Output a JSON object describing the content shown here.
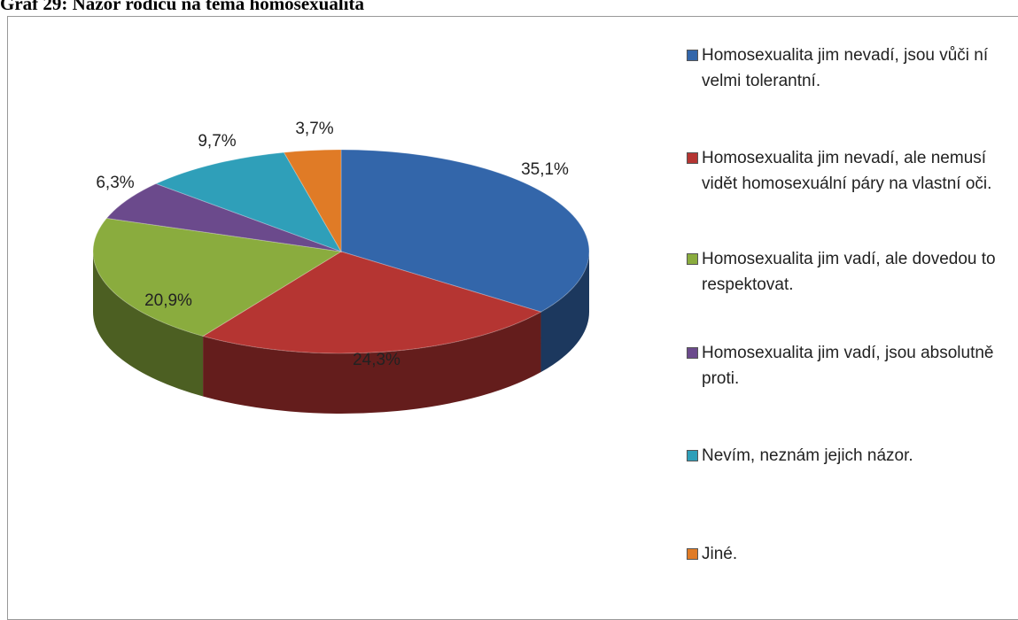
{
  "chart_data": {
    "type": "pie3d",
    "title": "Graf 29: Názor rodičů na téma homosexualita",
    "categories": [
      "Homosexualita jim nevadí, jsou vůči ní velmi tolerantní.",
      "Homosexualita jim nevadí, ale nemusí vidět homosexuální páry na vlastní oči.",
      "Homosexualita jim vadí, ale dovedou to respektovat.",
      "Homosexualita jim vadí, jsou absolutně proti.",
      "Nevím, neznám jejich názor.",
      "Jiné."
    ],
    "values": [
      35.1,
      24.3,
      20.9,
      6.3,
      9.7,
      3.7
    ],
    "value_labels": [
      "35,1%",
      "24,3%",
      "20,9%",
      "6,3%",
      "9,7%",
      "3,7%"
    ],
    "colors": [
      "#3366aa",
      "#b53532",
      "#8aac3e",
      "#6b4a8c",
      "#2f9fb9",
      "#e07b26"
    ],
    "legend": "right"
  }
}
